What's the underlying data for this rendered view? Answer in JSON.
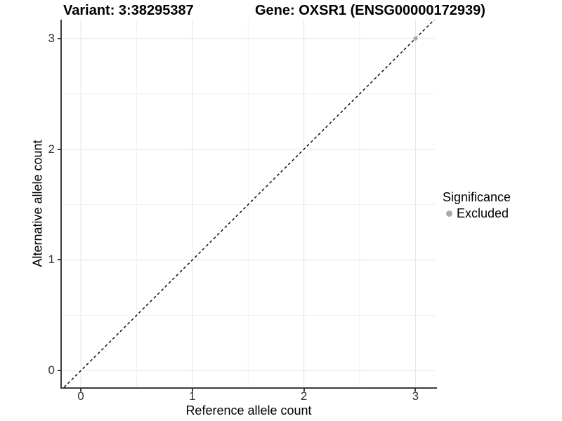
{
  "chart_data": {
    "type": "scatter",
    "title_left": "Variant: 3:38295387",
    "title_right": "Gene: OXSR1 (ENSG00000172939)",
    "xlabel": "Reference allele count",
    "ylabel": "Alternative allele count",
    "xlim": [
      -0.17,
      3.18
    ],
    "ylim": [
      -0.15,
      3.17
    ],
    "xticks": [
      0,
      1,
      2,
      3
    ],
    "yticks": [
      0,
      1,
      2,
      3
    ],
    "xticks_minor": [
      0.5,
      1.5,
      2.5
    ],
    "yticks_minor": [
      0.5,
      1.5,
      2.5
    ],
    "grid": "major+minor",
    "identity_line": {
      "type": "abline",
      "slope": 1,
      "intercept": 0,
      "style": "dashed",
      "color": "#000000"
    },
    "series": [
      {
        "name": "Excluded",
        "color": "#aaaaaa",
        "points": [
          {
            "x": 3,
            "y": 3
          }
        ]
      }
    ],
    "legend": {
      "title": "Significance",
      "position": "right",
      "entries": [
        {
          "label": "Excluded",
          "color": "#aaaaaa"
        }
      ]
    },
    "colors": {
      "background": "#ffffff",
      "grid_major": "#e4e4e4",
      "grid_minor": "#f1f1f1",
      "axis_line": "#3c3c3c",
      "tick_text": "#333333",
      "title_text": "#000000"
    }
  }
}
